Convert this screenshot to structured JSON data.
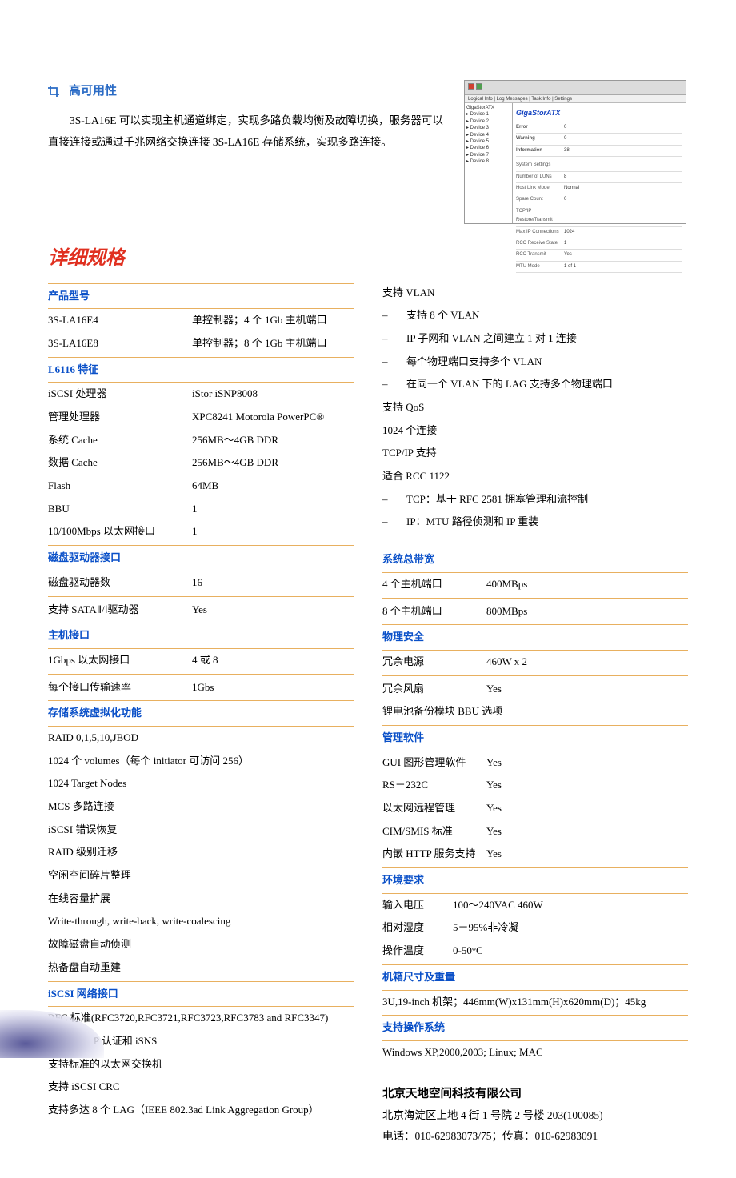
{
  "header": {
    "icon_color": "#2a6bc5",
    "title": "高可用性",
    "description": "3S-LA16E 可以实现主机通道绑定，实现多路负载均衡及故障切换，服务器可以直接连接或通过千兆网络交换连接 3S-LA16E 存储系统，实现多路连接。"
  },
  "detail_heading": "详细规格",
  "screenshot": {
    "app_title": "GigaStorATX",
    "tree_root": "GigaStorATX",
    "tree_items": [
      "Device 1",
      "Device 2",
      "Device 3",
      "Device 4",
      "Device 5",
      "Device 6",
      "Device 7",
      "Device 8"
    ],
    "status_rows": [
      {
        "label": "Error",
        "value": "0",
        "cls": "ss-dot-r"
      },
      {
        "label": "Warning",
        "value": "0",
        "cls": "ss-dot-g"
      },
      {
        "label": "Information",
        "value": "38",
        "cls": "ss-dot-o"
      }
    ],
    "setting_rows": [
      {
        "l": "System Settings",
        "r": ""
      },
      {
        "l": "Number of LUNs",
        "r": "8"
      },
      {
        "l": "Host Link Mode",
        "r": "Normal"
      },
      {
        "l": "Spare Count",
        "r": "0"
      },
      {
        "l": "TCP/IP Restore/Transmit",
        "r": ""
      },
      {
        "l": "Max IP Connections",
        "r": "1024"
      },
      {
        "l": "RCC Receive State",
        "r": "1"
      },
      {
        "l": "RCC Transmit",
        "r": "Yes"
      },
      {
        "l": "MTU Mode",
        "r": "1 of 1"
      }
    ]
  },
  "left": {
    "s1": {
      "hdr": "产品型号",
      "rows": [
        {
          "k": "3S-LA16E4",
          "v": "单控制器；4 个 1Gb 主机端口"
        },
        {
          "k": "3S-LA16E8",
          "v": "单控制器；8 个 1Gb 主机端口"
        }
      ]
    },
    "s2": {
      "hdr": "L6116 特征",
      "rows": [
        {
          "k": "iSCSI 处理器",
          "v": "iStor iSNP8008"
        },
        {
          "k": "管理处理器",
          "v": "XPC8241 Motorola PowerPC®"
        },
        {
          "k": "系统 Cache",
          "v": "256MB～4GB DDR"
        },
        {
          "k": "数据 Cache",
          "v": "256MB～4GB DDR"
        },
        {
          "k": "Flash",
          "v": "64MB"
        },
        {
          "k": "BBU",
          "v": "1"
        },
        {
          "k": "10/100Mbps 以太网接口",
          "v": "1"
        }
      ]
    },
    "s3": {
      "hdr": "磁盘驱动器接口",
      "rows": [
        {
          "k": "磁盘驱动器数",
          "v": "16"
        },
        {
          "k": "支持 SATAⅡ/Ⅰ驱动器",
          "v": "Yes"
        }
      ]
    },
    "s4": {
      "hdr": "主机接口",
      "rows": [
        {
          "k": "1Gbps 以太网接口",
          "v": "4 或 8"
        },
        {
          "k": "每个接口传输速率",
          "v": "1Gbs"
        }
      ]
    },
    "s5": {
      "hdr": "存储系统虚拟化功能",
      "lines": [
        "RAID 0,1,5,10,JBOD",
        "1024 个 volumes（每个 initiator 可访问 256）",
        "1024 Target Nodes",
        "MCS 多路连接",
        "iSCSI 错误恢复",
        "RAID 级别迁移",
        "空闲空间碎片整理",
        "在线容量扩展",
        "Write-through, write-back, write-coalescing",
        "故障磁盘自动侦测",
        "热备盘自动重建"
      ]
    },
    "s6": {
      "hdr": "iSCSI 网络接口",
      "lines": [
        "RFC 标准(RFC3720,RFC3721,RFC3723,RFC3783 and RFC3347)",
        "包括 CHAP 认证和 iSNS",
        "支持标准的以太网交换机",
        "支持 iSCSI CRC",
        "支持多达 8 个 LAG（IEEE 802.3ad Link Aggregation Group）"
      ]
    }
  },
  "right": {
    "pre": {
      "line1": "支持 VLAN",
      "dashes1": [
        "支持 8 个 VLAN",
        "IP 子网和 VLAN 之间建立 1 对 1 连接",
        "每个物理端口支持多个 VLAN",
        "在同一个 VLAN 下的 LAG 支持多个物理端口"
      ],
      "line2": "支持 QoS",
      "line3": "1024 个连接",
      "line4": "TCP/IP 支持",
      "line5": "适合 RCC 1122",
      "dashes2": [
        "TCP：基于 RFC 2581 拥塞管理和流控制",
        "IP：MTU 路径侦测和 IP 重装"
      ]
    },
    "s1": {
      "hdr": "系统总带宽",
      "rows": [
        {
          "k": "4 个主机端口",
          "v": "400MBps"
        },
        {
          "k": "8 个主机端口",
          "v": "800MBps"
        }
      ]
    },
    "s2": {
      "hdr": "物理安全",
      "rows": [
        {
          "k": "冗余电源",
          "v": "460W x 2"
        },
        {
          "k": "冗余风扇",
          "v": "Yes"
        },
        {
          "k": "锂电池备份模块 BBU",
          "v": "选项"
        }
      ]
    },
    "s3": {
      "hdr": "管理软件",
      "rows": [
        {
          "k": "GUI 图形管理软件",
          "v": "Yes"
        },
        {
          "k": "RS－232C",
          "v": "Yes"
        },
        {
          "k": "以太网远程管理",
          "v": "Yes"
        },
        {
          "k": "CIM/SMIS 标准",
          "v": "Yes"
        },
        {
          "k": "内嵌 HTTP 服务支持",
          "v": "Yes"
        }
      ]
    },
    "s4": {
      "hdr": "环境要求",
      "rows": [
        {
          "k": "输入电压",
          "v": "100～240VAC 460W"
        },
        {
          "k": "相对湿度",
          "v": "5－95%非冷凝"
        },
        {
          "k": "操作温度",
          "v": "0-50°C"
        }
      ]
    },
    "s5": {
      "hdr": "机箱尺寸及重量",
      "line": "3U,19-inch 机架；446mm(W)x131mm(H)x620mm(D)；45kg"
    },
    "s6": {
      "hdr": "支持操作系统",
      "line": "Windows XP,2000,2003; Linux; MAC"
    }
  },
  "company": {
    "name": "北京天地空间科技有限公司",
    "addr": "北京海淀区上地 4 街 1 号院 2 号楼 203(100085)",
    "tel": "电话：010-62983073/75；传真：010-62983091"
  }
}
